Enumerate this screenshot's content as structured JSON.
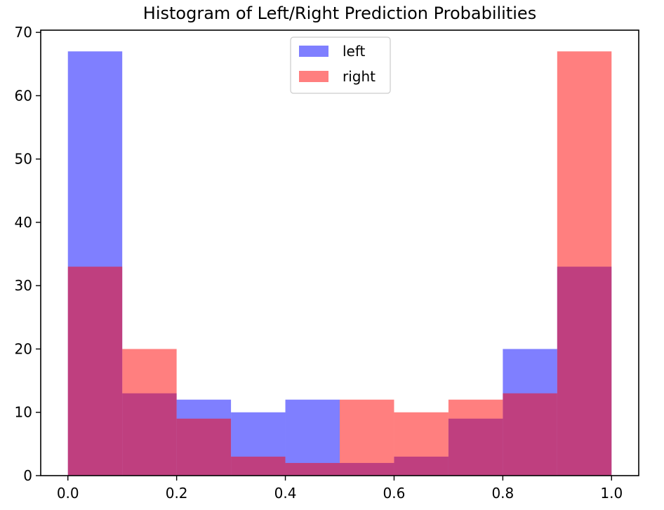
{
  "chart_data": {
    "type": "bar",
    "title": "Histogram of Left/Right Prediction Probabilities",
    "xlabel": "",
    "ylabel": "",
    "bin_edges": [
      0.0,
      0.1,
      0.2,
      0.3,
      0.4,
      0.5,
      0.6,
      0.7,
      0.8,
      0.9,
      1.0
    ],
    "series": [
      {
        "name": "left",
        "color": "#0000ff",
        "alpha": 0.5,
        "values": [
          67,
          13,
          12,
          10,
          12,
          2,
          3,
          9,
          20,
          33
        ]
      },
      {
        "name": "right",
        "color": "#ff0000",
        "alpha": 0.5,
        "values": [
          33,
          20,
          9,
          3,
          2,
          12,
          10,
          12,
          13,
          67
        ]
      }
    ],
    "xticks": [
      "0.0",
      "0.2",
      "0.4",
      "0.6",
      "0.8",
      "1.0"
    ],
    "xtick_values": [
      0.0,
      0.2,
      0.4,
      0.6,
      0.8,
      1.0
    ],
    "yticks": [
      "0",
      "10",
      "20",
      "30",
      "40",
      "50",
      "60",
      "70"
    ],
    "ytick_values": [
      0,
      10,
      20,
      30,
      40,
      50,
      60,
      70
    ],
    "xlim": [
      -0.05,
      1.05
    ],
    "ylim": [
      0,
      70.35
    ],
    "grid": false,
    "legend_position": "upper-center"
  }
}
